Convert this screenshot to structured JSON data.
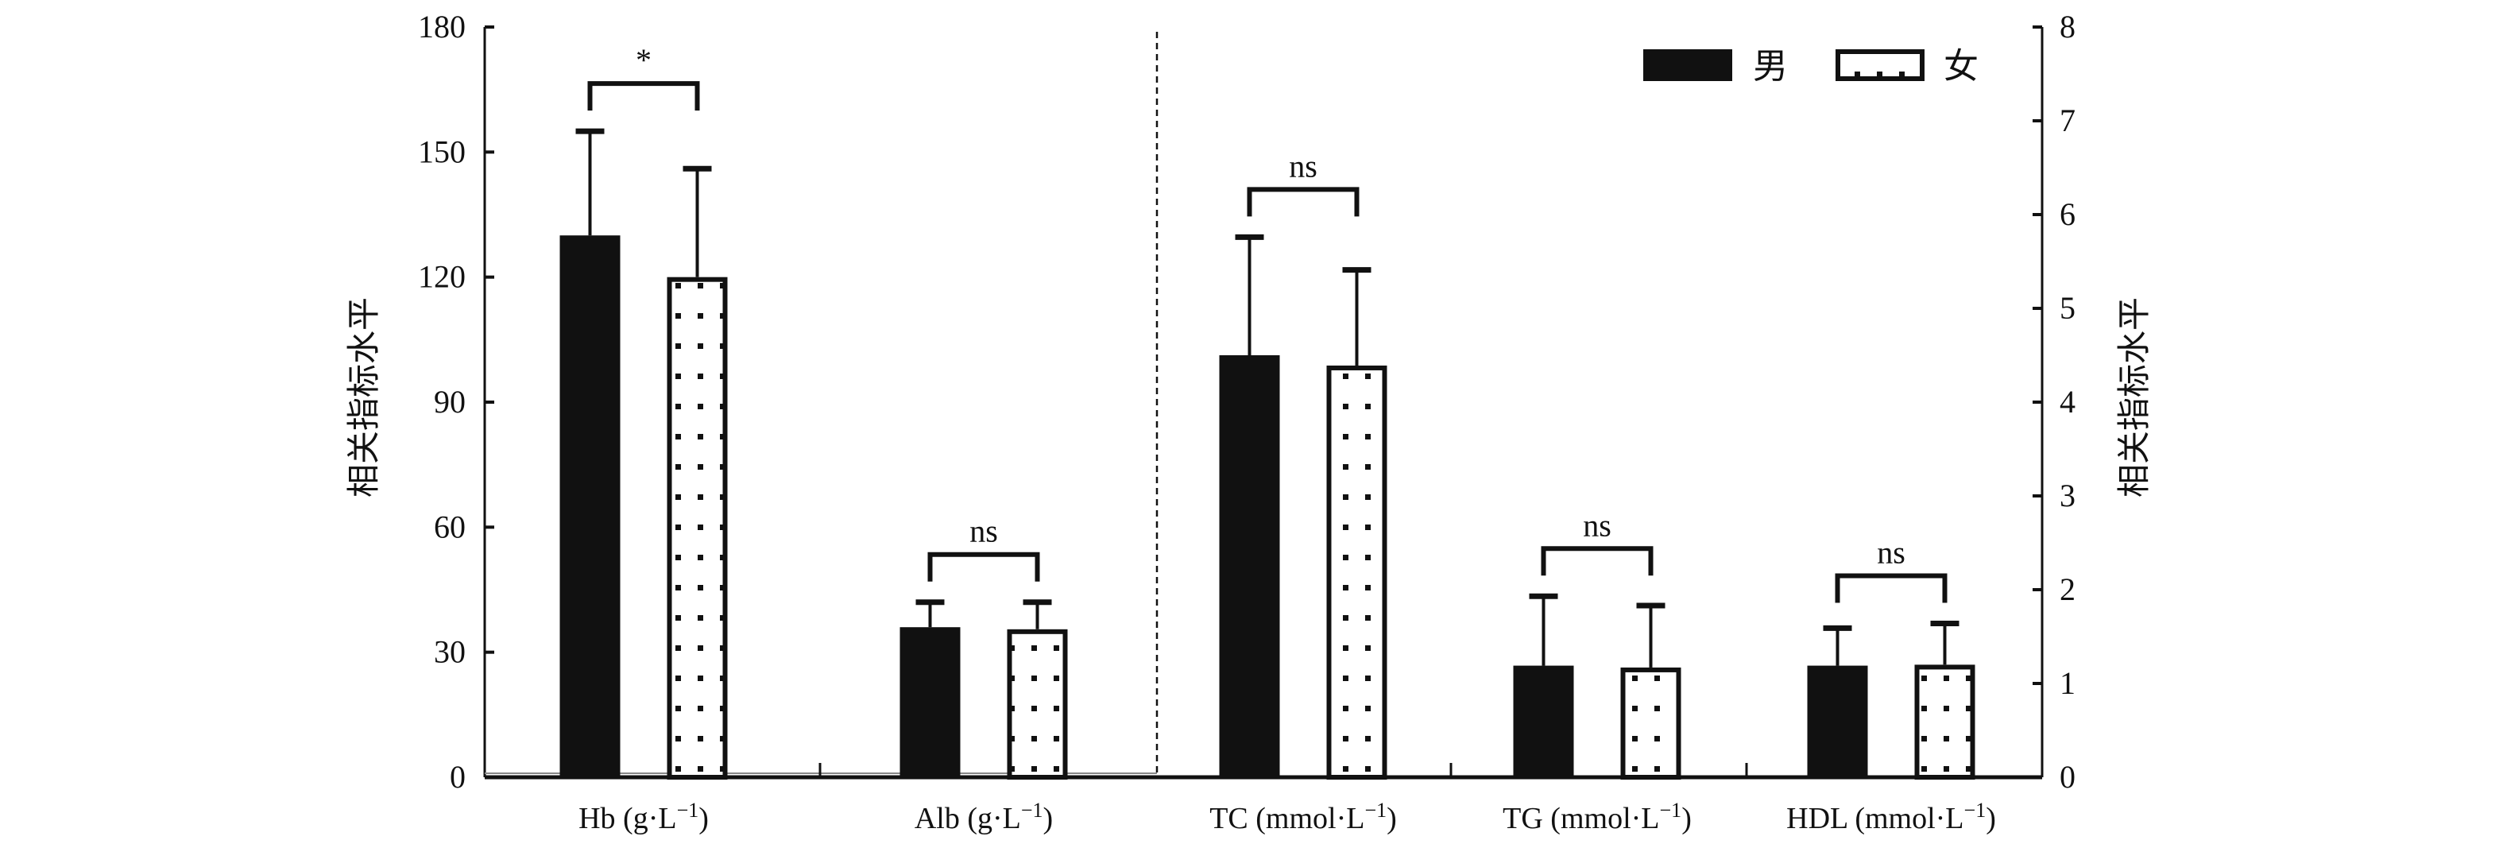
{
  "chart_data": {
    "type": "bar",
    "title": "",
    "xlabel": "",
    "ylabel_left": "相关指标水平",
    "ylabel_right": "相关指标水平",
    "left_axis": {
      "ylim": [
        0,
        180
      ],
      "ticks": [
        "0",
        "30",
        "60",
        "90",
        "120",
        "150",
        "180"
      ]
    },
    "right_axis": {
      "ylim": [
        0,
        8
      ],
      "ticks": [
        "0",
        "1",
        "2",
        "3",
        "4",
        "5",
        "6",
        "7",
        "8"
      ]
    },
    "categories": [
      {
        "label": "Hb (g·L",
        "sup": "−1",
        "axis": "left"
      },
      {
        "label": "Alb (g·L",
        "sup": "−1",
        "axis": "left"
      },
      {
        "label": "TC (mmol·L",
        "sup": "−1",
        "axis": "right"
      },
      {
        "label": "TG (mmol·L",
        "sup": "−1",
        "axis": "right"
      },
      {
        "label": "HDL (mmol·L",
        "sup": "−1",
        "axis": "right"
      }
    ],
    "series": [
      {
        "name": "男",
        "pattern": "solid",
        "values": [
          130,
          36,
          4.5,
          1.19,
          1.19
        ],
        "error_upper": [
          155,
          42,
          5.76,
          1.93,
          1.59
        ]
      },
      {
        "name": "女",
        "pattern": "dotted",
        "values": [
          120,
          35.5,
          4.39,
          1.17,
          1.2
        ],
        "error_upper": [
          146,
          42,
          5.41,
          1.83,
          1.64
        ]
      }
    ],
    "significance": [
      "*",
      "ns",
      "ns",
      "ns",
      "ns"
    ],
    "legend": {
      "position": "top-right",
      "entries": [
        "男",
        "女"
      ]
    },
    "grid": false,
    "colors": {
      "male": "#111111",
      "female_fill": "#ffffff",
      "stroke": "#111111"
    }
  }
}
